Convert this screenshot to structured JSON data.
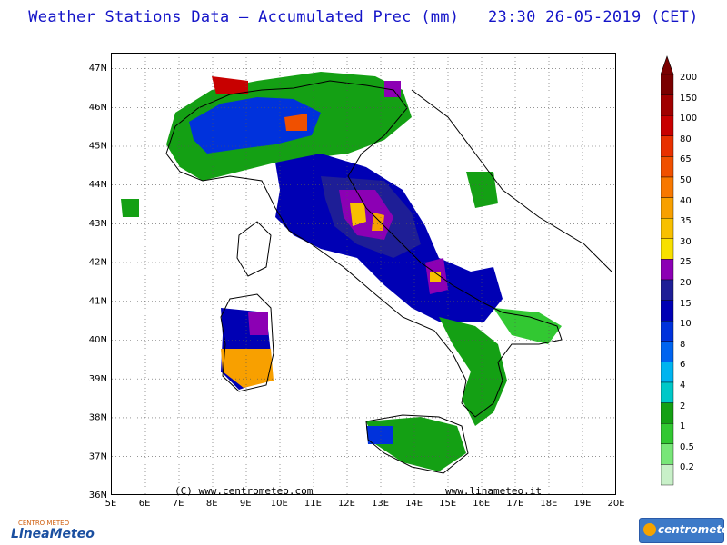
{
  "title": "Weather Stations Data — Accumulated Prec (mm)   23:30 26-05-2019 (CET)",
  "map": {
    "lon_labels": [
      "5E",
      "6E",
      "7E",
      "8E",
      "9E",
      "10E",
      "11E",
      "12E",
      "13E",
      "14E",
      "15E",
      "16E",
      "17E",
      "18E",
      "19E",
      "20E"
    ],
    "lat_labels": [
      "47N",
      "46N",
      "45N",
      "44N",
      "43N",
      "42N",
      "41N",
      "40N",
      "39N",
      "38N",
      "37N",
      "36N"
    ],
    "lon_range": [
      5,
      20
    ],
    "lat_range": [
      36,
      47.4
    ],
    "grid": "dotted",
    "background": "#ffffff"
  },
  "credits": {
    "left": "(C) www.centrometeo.com",
    "right": "www.linameteo.it"
  },
  "legend": {
    "levels": [
      "200",
      "150",
      "100",
      "80",
      "65",
      "50",
      "40",
      "35",
      "30",
      "25",
      "20",
      "15",
      "10",
      "8",
      "6",
      "4",
      "2",
      "1",
      "0.5",
      "0.2"
    ],
    "colors": [
      "#7a0000",
      "#a00000",
      "#c80000",
      "#e83000",
      "#f05000",
      "#f87800",
      "#f8a000",
      "#f8c000",
      "#f8e000",
      "#8c00b4",
      "#1e1e96",
      "#0000b4",
      "#0032dc",
      "#0064f0",
      "#00b4f0",
      "#00c8c8",
      "#14a014",
      "#32c832",
      "#78e678",
      "#c8f0c8"
    ]
  },
  "logos": {
    "left_top": "CENTRO METEO",
    "left_main": "LineaMeteo",
    "right": "centrometeo"
  }
}
